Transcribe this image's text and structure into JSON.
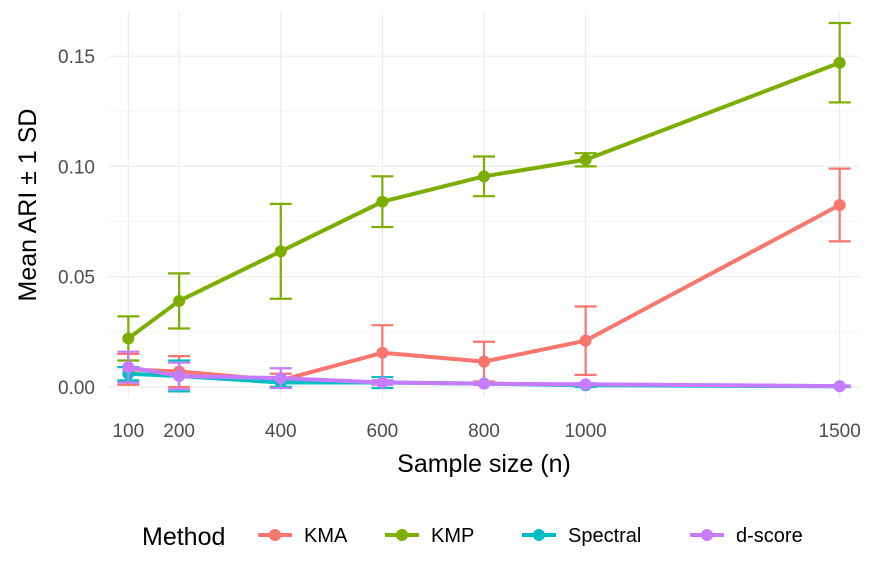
{
  "chart_data": {
    "type": "line",
    "xlabel": "Sample size (n)",
    "ylabel": "Mean ARI ± 1 SD",
    "x": [
      100,
      200,
      400,
      600,
      800,
      1000,
      1500
    ],
    "x_tick_labels": [
      "100",
      "200",
      "400",
      "600",
      "800",
      "1000",
      "1500"
    ],
    "xlim": [
      60,
      1540
    ],
    "ylim": [
      -0.005,
      0.17
    ],
    "y_ticks": [
      0,
      0.05,
      0.1,
      0.15
    ],
    "y_tick_labels": [
      "0.00",
      "0.05",
      "0.10",
      "0.15"
    ],
    "grid": true,
    "error_bars": "± 1 SD",
    "legend": {
      "title": "Method",
      "position": "bottom"
    },
    "series": [
      {
        "name": "KMA",
        "color": "#F8766D",
        "values": [
          0.008,
          0.007,
          0.003,
          0.0155,
          0.0115,
          0.021,
          0.0825
        ],
        "sd": [
          0.007,
          0.007,
          0.003,
          0.0125,
          0.009,
          0.0155,
          0.0165
        ]
      },
      {
        "name": "KMP",
        "color": "#7CAE00",
        "values": [
          0.022,
          0.039,
          0.0615,
          0.084,
          0.0955,
          0.103,
          0.147
        ],
        "sd": [
          0.01,
          0.0125,
          0.0215,
          0.0115,
          0.009,
          0.003,
          0.018
        ]
      },
      {
        "name": "Spectral",
        "color": "#00BFC4",
        "values": [
          0.006,
          0.005,
          0.002,
          0.002,
          0.0015,
          0.0008,
          0.0003
        ],
        "sd": [
          0.003,
          0.007,
          0.002,
          0.0025,
          0.0005,
          0.0008,
          0.0003
        ]
      },
      {
        "name": "d-score",
        "color": "#C77CFF",
        "values": [
          0.009,
          0.005,
          0.004,
          0.002,
          0.0015,
          0.0012,
          0.0004
        ],
        "sd": [
          0.007,
          0.006,
          0.0045,
          0.001,
          0.0005,
          0.0005,
          0.0003
        ]
      }
    ]
  }
}
